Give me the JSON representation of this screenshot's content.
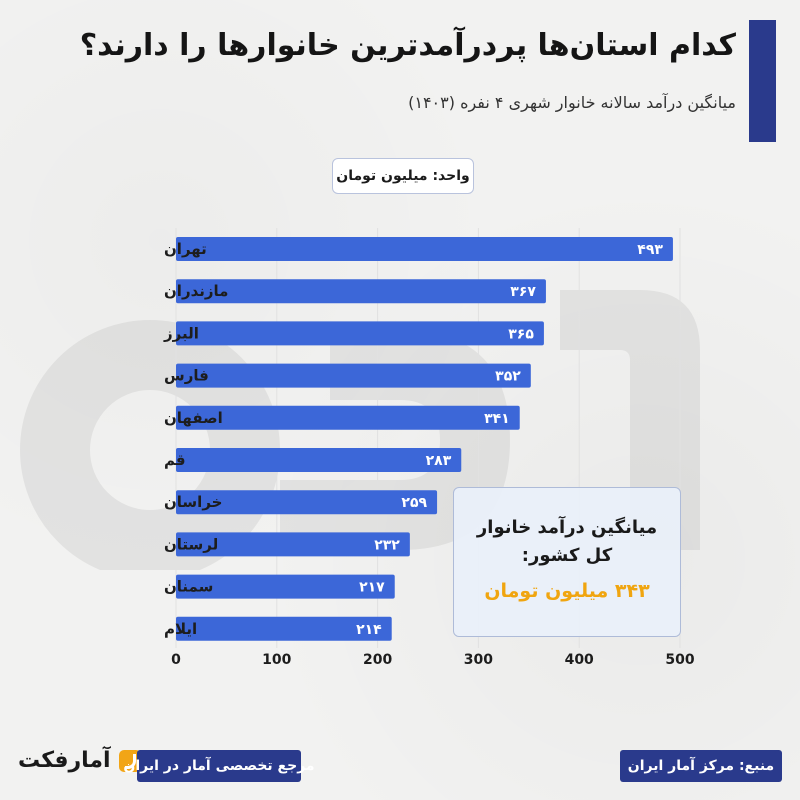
{
  "header": {
    "title": "کدام استان‌ها پردرآمدترین خانوارها را دارند؟",
    "subtitle": "میانگین درآمد سالانه خانوار شهری ۴ نفره (۱۴۰۳)",
    "unit": "واحد: میلیون تومان"
  },
  "chart_data": {
    "type": "bar",
    "orientation": "horizontal",
    "categories": [
      "تهران",
      "مازندران",
      "البرز",
      "فارس",
      "اصفهان",
      "قم",
      "خراسان",
      "لرستان",
      "سمنان",
      "ایلام"
    ],
    "values": [
      493,
      367,
      365,
      352,
      341,
      283,
      259,
      232,
      217,
      214
    ],
    "value_labels": [
      "۴۹۳",
      "۳۶۷",
      "۳۶۵",
      "۳۵۲",
      "۳۴۱",
      "۲۸۳",
      "۲۵۹",
      "۲۳۲",
      "۲۱۷",
      "۲۱۴"
    ],
    "xlim": [
      0,
      500
    ],
    "ticks": [
      0,
      100,
      200,
      300,
      400,
      500
    ],
    "tick_labels": [
      "0",
      "100",
      "200",
      "300",
      "400",
      "500"
    ],
    "bar_color": "#3c67d8",
    "grid": true
  },
  "national_average": {
    "label": "میانگین درآمد خانوار کل کشور:",
    "value": "۳۴۳ میلیون تومان",
    "value_color": "#f0a510"
  },
  "footer": {
    "brand": "آمارفکت",
    "tagline": "مرجع تخصصی آمار در ایران",
    "source": "منبع: مرکز آمار ایران"
  }
}
